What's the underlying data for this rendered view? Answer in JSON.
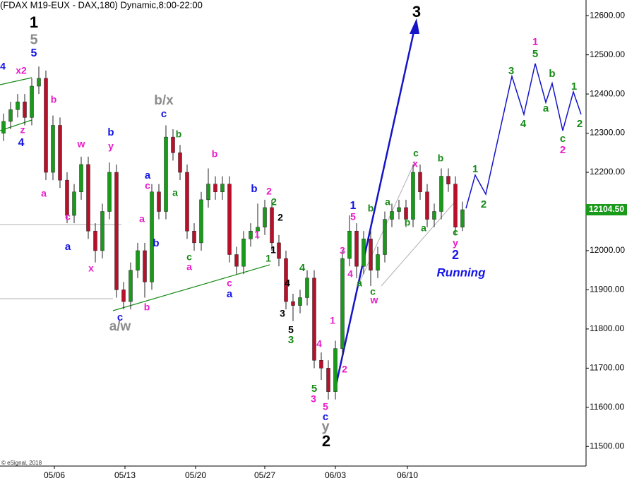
{
  "chart_data": {
    "type": "candlestick",
    "title": "(FDAX M19-EUX - DAX,180) Dynamic,8:00-22:00",
    "footer": "© eSignal, 2018",
    "xlim": [
      -0.5,
      82.5
    ],
    "xticks": [
      {
        "value": 7.2,
        "label": "05/06"
      },
      {
        "value": 17.2,
        "label": "05/13"
      },
      {
        "value": 27.2,
        "label": "05/20"
      },
      {
        "value": 37,
        "label": "05/27"
      },
      {
        "value": 47,
        "label": "06/03"
      },
      {
        "value": 57.2,
        "label": "06/10"
      }
    ],
    "ylim": [
      11450,
      12640
    ],
    "yticks": [
      {
        "value": 11500,
        "label": "11500.00"
      },
      {
        "value": 11600,
        "label": "11600.00"
      },
      {
        "value": 11700,
        "label": "11700.00"
      },
      {
        "value": 11800,
        "label": "11800.00"
      },
      {
        "value": 11900,
        "label": "11900.00"
      },
      {
        "value": 12000,
        "label": "12000.00"
      },
      {
        "value": 12100,
        "label": "12100.00"
      },
      {
        "value": 12200,
        "label": "12200.00"
      },
      {
        "value": 12300,
        "label": "12300.00"
      },
      {
        "value": 12400,
        "label": "12400.00"
      },
      {
        "value": 12500,
        "label": "12500.00"
      },
      {
        "value": 12600,
        "label": "12600.00"
      }
    ],
    "up_color": "#1a9a1a",
    "down_color": "#b8102a",
    "open": [
      12300,
      12330,
      12360,
      12380,
      12340,
      12420,
      12440,
      12200,
      12320,
      12180,
      12090,
      12150,
      12220,
      12050,
      12000,
      12100,
      12200,
      11900,
      11870,
      11950,
      12000,
      11920,
      12150,
      12100,
      12290,
      12250,
      12200,
      12050,
      12020,
      12130,
      12170,
      12150,
      12170,
      11990,
      11960,
      12030,
      12050,
      12060,
      12110,
      12020,
      11980,
      11870,
      11860,
      11880,
      11930,
      11720,
      11700,
      11640,
      11750,
      11980,
      12050,
      11960,
      12030,
      11950,
      11990,
      12080,
      12100,
      12110,
      12080,
      12200,
      12150,
      12080,
      12100,
      12190,
      12170,
      12060
    ],
    "high": [
      12350,
      12380,
      12400,
      12400,
      12440,
      12470,
      12460,
      12345,
      12340,
      12200,
      12170,
      12240,
      12240,
      12070,
      12120,
      12225,
      12220,
      11920,
      11970,
      12020,
      12020,
      12170,
      12170,
      12320,
      12310,
      12270,
      12220,
      12070,
      12150,
      12210,
      12190,
      12190,
      12190,
      12010,
      12050,
      12070,
      12120,
      12130,
      12130,
      12040,
      12000,
      11890,
      11900,
      11950,
      11950,
      11740,
      11720,
      11770,
      12000,
      12090,
      12070,
      12050,
      12050,
      12010,
      12100,
      12120,
      12130,
      12130,
      12220,
      12220,
      12170,
      12120,
      12210,
      12210,
      12190,
      12125
    ],
    "low": [
      12280,
      12310,
      12340,
      12320,
      12320,
      12400,
      12180,
      12180,
      12160,
      12070,
      12070,
      12130,
      12030,
      11970,
      11980,
      12080,
      11880,
      11850,
      11850,
      11930,
      11880,
      11900,
      12080,
      12080,
      12230,
      12180,
      12030,
      12000,
      12000,
      12110,
      12130,
      12130,
      11970,
      11940,
      11940,
      12010,
      12030,
      12040,
      12000,
      11960,
      11850,
      11820,
      11840,
      11860,
      11700,
      11670,
      11620,
      11620,
      11730,
      11960,
      11930,
      11940,
      11910,
      11930,
      11970,
      12060,
      12080,
      12060,
      12060,
      12130,
      12060,
      12060,
      12080,
      12150,
      12040,
      12050
    ],
    "close": [
      12330,
      12360,
      12380,
      12340,
      12420,
      12440,
      12200,
      12320,
      12180,
      12090,
      12150,
      12220,
      12050,
      12000,
      12100,
      12200,
      11900,
      11870,
      11950,
      12000,
      11920,
      12150,
      12100,
      12290,
      12250,
      12200,
      12050,
      12020,
      12130,
      12170,
      12150,
      12170,
      11990,
      11960,
      12030,
      12050,
      12060,
      12110,
      12020,
      11980,
      11870,
      11860,
      11880,
      11930,
      11720,
      11700,
      11640,
      11750,
      11980,
      12050,
      11960,
      12030,
      11950,
      11990,
      12080,
      12100,
      12110,
      12080,
      12200,
      12150,
      12080,
      12100,
      12190,
      12170,
      12060,
      12104.5
    ],
    "last_price": {
      "value": 12104.5,
      "label": "12104.50",
      "color": "#1a9a1a"
    },
    "annotations": [
      {
        "text": "1",
        "color": "#000000"
      },
      {
        "text": "5",
        "color": "#8c8c8c"
      },
      {
        "text": "5",
        "color": "#1414e6"
      },
      {
        "text": "4",
        "color": "#1414e6"
      },
      {
        "text": "x2",
        "color": "#e81cc8"
      },
      {
        "text": "z",
        "color": "#e81cc8"
      },
      {
        "text": "4",
        "color": "#1414e6"
      },
      {
        "text": "b",
        "color": "#e81cc8"
      },
      {
        "text": "w",
        "color": "#e81cc8"
      },
      {
        "text": "b",
        "color": "#1414e6"
      },
      {
        "text": "y",
        "color": "#e81cc8"
      },
      {
        "text": "a",
        "color": "#e81cc8"
      },
      {
        "text": "c",
        "color": "#e81cc8"
      },
      {
        "text": "a",
        "color": "#1414e6"
      },
      {
        "text": "x",
        "color": "#e81cc8"
      },
      {
        "text": "b/x",
        "color": "#8c8c8c"
      },
      {
        "text": "c",
        "color": "#1414e6"
      },
      {
        "text": "b",
        "color": "#168a16"
      },
      {
        "text": "a",
        "color": "#1414e6"
      },
      {
        "text": "c",
        "color": "#e81cc8"
      },
      {
        "text": "a",
        "color": "#168a16"
      },
      {
        "text": "a",
        "color": "#e81cc8"
      },
      {
        "text": "b",
        "color": "#1414e6"
      },
      {
        "text": "c",
        "color": "#168a16"
      },
      {
        "text": "a",
        "color": "#e81cc8"
      },
      {
        "text": "b",
        "color": "#e81cc8"
      },
      {
        "text": "b",
        "color": "#1414e6"
      },
      {
        "text": "2",
        "color": "#e81cc8"
      },
      {
        "text": "2",
        "color": "#168a16"
      },
      {
        "text": "2",
        "color": "#000000"
      },
      {
        "text": "1",
        "color": "#e81cc8"
      },
      {
        "text": "1",
        "color": "#000000"
      },
      {
        "text": "1",
        "color": "#168a16"
      },
      {
        "text": "c",
        "color": "#e81cc8"
      },
      {
        "text": "a",
        "color": "#1414e6"
      },
      {
        "text": "c",
        "color": "#1414e6"
      },
      {
        "text": "b",
        "color": "#e81cc8"
      },
      {
        "text": "a/w",
        "color": "#8c8c8c"
      },
      {
        "text": "4",
        "color": "#168a16"
      },
      {
        "text": "4",
        "color": "#000000"
      },
      {
        "text": "3",
        "color": "#000000"
      },
      {
        "text": "5",
        "color": "#000000"
      },
      {
        "text": "3",
        "color": "#168a16"
      },
      {
        "text": "1",
        "color": "#e81cc8"
      },
      {
        "text": "4",
        "color": "#e81cc8"
      },
      {
        "text": "2",
        "color": "#e81cc8"
      },
      {
        "text": "5",
        "color": "#168a16"
      },
      {
        "text": "3",
        "color": "#e81cc8"
      },
      {
        "text": "5",
        "color": "#e81cc8"
      },
      {
        "text": "c",
        "color": "#1414e6"
      },
      {
        "text": "y",
        "color": "#8c8c8c"
      },
      {
        "text": "2",
        "color": "#000000"
      },
      {
        "text": "3",
        "color": "#e81cc8"
      },
      {
        "text": "4",
        "color": "#e81cc8"
      },
      {
        "text": "a",
        "color": "#168a16"
      },
      {
        "text": "1",
        "color": "#1414e6"
      },
      {
        "text": "5",
        "color": "#e81cc8"
      },
      {
        "text": "b",
        "color": "#168a16"
      },
      {
        "text": "c",
        "color": "#168a16"
      },
      {
        "text": "w",
        "color": "#e81cc8"
      },
      {
        "text": "a",
        "color": "#168a16"
      },
      {
        "text": "b",
        "color": "#168a16"
      },
      {
        "text": "a",
        "color": "#168a16"
      },
      {
        "text": "x",
        "color": "#e81cc8"
      },
      {
        "text": "c",
        "color": "#168a16"
      },
      {
        "text": "b",
        "color": "#168a16"
      },
      {
        "text": "c",
        "color": "#168a16"
      },
      {
        "text": "y",
        "color": "#e81cc8"
      },
      {
        "text": "2",
        "color": "#1414e6"
      },
      {
        "text": "Running",
        "color": "#1414e6"
      },
      {
        "text": "3",
        "color": "#000000"
      },
      {
        "text": "1",
        "color": "#168a16"
      },
      {
        "text": "2",
        "color": "#168a16"
      },
      {
        "text": "3",
        "color": "#168a16"
      },
      {
        "text": "4",
        "color": "#168a16"
      },
      {
        "text": "1",
        "color": "#e81cc8"
      },
      {
        "text": "5",
        "color": "#168a16"
      },
      {
        "text": "b",
        "color": "#168a16"
      },
      {
        "text": "a",
        "color": "#168a16"
      },
      {
        "text": "c",
        "color": "#168a16"
      },
      {
        "text": "2",
        "color": "#e81cc8"
      },
      {
        "text": "1",
        "color": "#168a16"
      },
      {
        "text": "2",
        "color": "#168a16"
      }
    ]
  }
}
